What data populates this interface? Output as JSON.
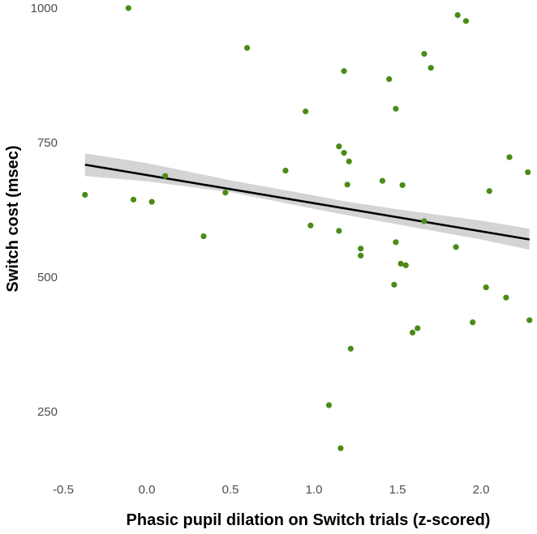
{
  "chart_data": {
    "type": "scatter",
    "title": "",
    "xlabel": "Phasic pupil dilation on Switch trials (z-scored)",
    "ylabel": "Switch cost (msec)",
    "xlim": [
      -0.6,
      2.3
    ],
    "ylim": [
      150,
      1010
    ],
    "x_ticks": [
      {
        "value": -0.5,
        "label": "-0.5"
      },
      {
        "value": 0.0,
        "label": "0.0"
      },
      {
        "value": 0.5,
        "label": "0.5"
      },
      {
        "value": 1.0,
        "label": "1.0"
      },
      {
        "value": 1.5,
        "label": "1.5"
      },
      {
        "value": 2.0,
        "label": "2.0"
      }
    ],
    "y_ticks": [
      {
        "value": 250,
        "label": "250"
      },
      {
        "value": 500,
        "label": "500"
      },
      {
        "value": 750,
        "label": "750"
      },
      {
        "value": 1000,
        "label": "1000"
      }
    ],
    "grid": false,
    "point_color": "#4a8c16",
    "line_color": "#000000",
    "band_color": "#cccccc",
    "points": [
      {
        "x": -0.37,
        "y": 653
      },
      {
        "x": -0.11,
        "y": 1000
      },
      {
        "x": -0.08,
        "y": 644
      },
      {
        "x": 0.03,
        "y": 640
      },
      {
        "x": 0.11,
        "y": 688
      },
      {
        "x": 0.34,
        "y": 576
      },
      {
        "x": 0.47,
        "y": 657
      },
      {
        "x": 0.6,
        "y": 926
      },
      {
        "x": 0.83,
        "y": 698
      },
      {
        "x": 0.95,
        "y": 808
      },
      {
        "x": 0.98,
        "y": 596
      },
      {
        "x": 1.09,
        "y": 262
      },
      {
        "x": 1.15,
        "y": 743
      },
      {
        "x": 1.15,
        "y": 586
      },
      {
        "x": 1.16,
        "y": 182
      },
      {
        "x": 1.18,
        "y": 883
      },
      {
        "x": 1.18,
        "y": 731
      },
      {
        "x": 1.2,
        "y": 672
      },
      {
        "x": 1.21,
        "y": 715
      },
      {
        "x": 1.22,
        "y": 367
      },
      {
        "x": 1.28,
        "y": 553
      },
      {
        "x": 1.28,
        "y": 540
      },
      {
        "x": 1.41,
        "y": 679
      },
      {
        "x": 1.45,
        "y": 868
      },
      {
        "x": 1.48,
        "y": 486
      },
      {
        "x": 1.49,
        "y": 813
      },
      {
        "x": 1.49,
        "y": 565
      },
      {
        "x": 1.52,
        "y": 525
      },
      {
        "x": 1.53,
        "y": 671
      },
      {
        "x": 1.55,
        "y": 522
      },
      {
        "x": 1.59,
        "y": 397
      },
      {
        "x": 1.62,
        "y": 405
      },
      {
        "x": 1.66,
        "y": 604
      },
      {
        "x": 1.66,
        "y": 915
      },
      {
        "x": 1.7,
        "y": 889
      },
      {
        "x": 1.85,
        "y": 556
      },
      {
        "x": 1.86,
        "y": 987
      },
      {
        "x": 1.91,
        "y": 976
      },
      {
        "x": 1.95,
        "y": 416
      },
      {
        "x": 2.03,
        "y": 481
      },
      {
        "x": 2.05,
        "y": 660
      },
      {
        "x": 2.15,
        "y": 462
      },
      {
        "x": 2.17,
        "y": 723
      },
      {
        "x": 2.28,
        "y": 695
      },
      {
        "x": 2.29,
        "y": 420
      }
    ],
    "fit_line": {
      "x": [
        -0.37,
        2.29
      ],
      "y": [
        709,
        570
      ]
    },
    "confidence_band": {
      "x": [
        -0.37,
        0.0,
        0.5,
        1.0,
        1.2,
        1.5,
        2.0,
        2.29
      ],
      "upper": [
        730,
        712,
        680,
        652,
        640,
        626,
        605,
        590
      ],
      "lower": [
        688,
        678,
        658,
        627,
        615,
        598,
        570,
        551
      ]
    }
  }
}
